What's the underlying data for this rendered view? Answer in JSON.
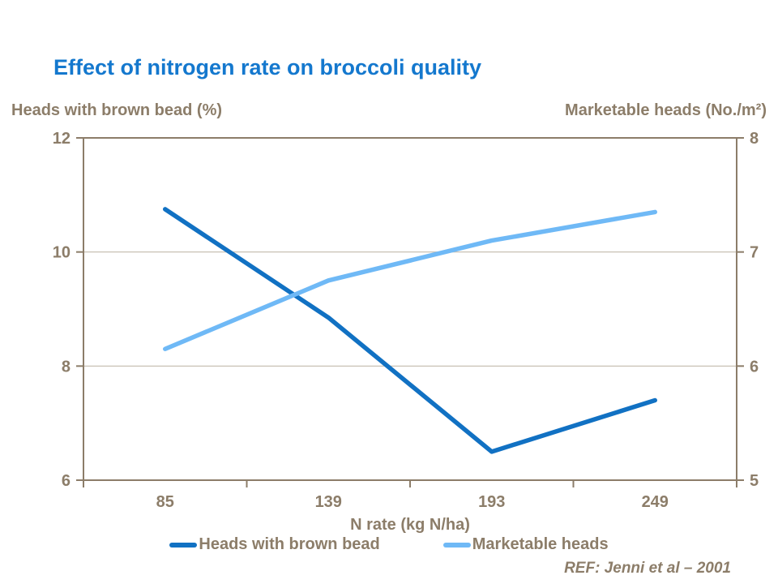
{
  "title": "Effect of nitrogen rate on broccoli quality",
  "colors": {
    "title": "#1478CE",
    "text": "#8C7D69",
    "axis": "#8C7D69",
    "grid": "#C2B9AC",
    "series_dark_blue": "#1171C3",
    "series_light_blue": "#6FB9F6"
  },
  "chart_data": {
    "type": "line",
    "title": "Effect of nitrogen rate on broccoli quality",
    "categories": [
      "85",
      "139",
      "193",
      "249"
    ],
    "xlabel": "N rate (kg N/ha)",
    "left_axis": {
      "label": "Heads with brown bead (%)",
      "min": 6,
      "max": 12,
      "ticks": [
        12,
        10,
        8,
        6
      ]
    },
    "right_axis": {
      "label": "Marketable heads (No./m²)",
      "min": 5,
      "max": 8,
      "ticks": [
        8,
        7,
        6,
        5
      ]
    },
    "series": [
      {
        "name": "Heads with brown bead",
        "axis": "left",
        "color": "#1171C3",
        "values": [
          10.75,
          8.85,
          6.5,
          7.4
        ]
      },
      {
        "name": "Marketable heads",
        "axis": "right",
        "color": "#6FB9F6",
        "values": [
          6.15,
          6.75,
          7.1,
          7.35
        ]
      }
    ],
    "grid": true,
    "legend_position": "bottom"
  },
  "footer": {
    "ref": "REF: Jenni et al – 2001"
  }
}
